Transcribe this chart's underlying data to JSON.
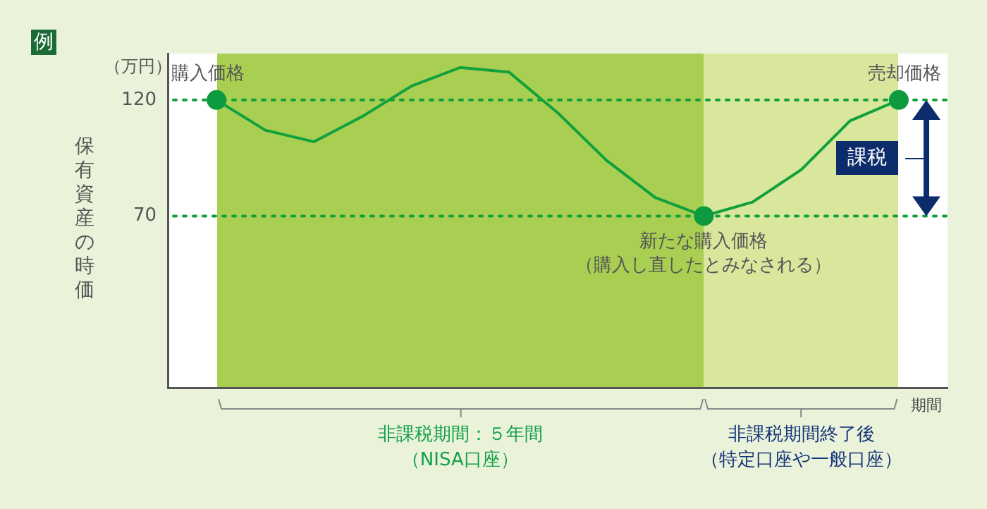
{
  "chart_data": {
    "type": "line",
    "ylabel": "保有資産の時価",
    "xlabel": "期間",
    "annotations": [
      "例",
      "（万円）",
      "課税",
      "非課税期間：５年間（NISA口座）",
      "非課税期間終了後（特定口座や一般口座）",
      {
        "text": "購入価格",
        "y": 120
      },
      {
        "text": "新たな購入価格（購入し直したとみなされる）",
        "y": 70
      },
      {
        "text": "売却価格",
        "y": 120
      }
    ],
    "categories": [
      null,
      null,
      null,
      null,
      null,
      null,
      null,
      null,
      null,
      null,
      null,
      null,
      null,
      null,
      null,
      null,
      null
    ],
    "series": [
      {
        "color": "#12a03c",
        "marker": "none",
        "values": [
          null,
          120,
          107,
          102,
          113,
          126,
          134,
          132,
          114.5,
          94,
          78,
          70,
          76,
          90,
          111,
          120,
          null
        ]
      },
      {
        "type": "scatter",
        "color": "#0e9a3e",
        "marker": "circle",
        "values": [
          null,
          120,
          null,
          null,
          null,
          null,
          null,
          null,
          null,
          null,
          null,
          70,
          null,
          null,
          null,
          120,
          null
        ]
      }
    ],
    "ylim": [
      -4,
      140
    ],
    "yticks": [
      70,
      120
    ],
    "tick_labels": "y",
    "grid": false,
    "legend": false,
    "ref_lines": [
      {
        "axis": "y",
        "value": 120,
        "color": "#12a03c",
        "line_style": "dotted"
      },
      {
        "axis": "y",
        "value": 70,
        "color": "#12a03c",
        "line_style": "dotted"
      }
    ]
  }
}
